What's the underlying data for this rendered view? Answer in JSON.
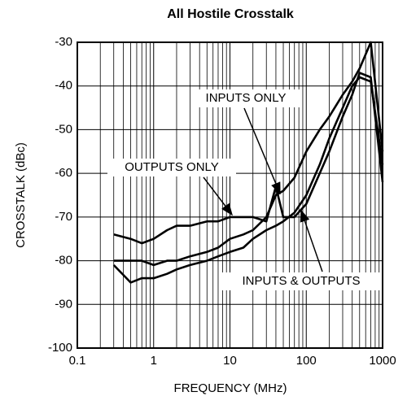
{
  "chart_data": {
    "type": "line",
    "title": "All Hostile Crosstalk",
    "x_label": "FREQUENCY (MHz)",
    "y_label": "CROSSTALK (dBc)",
    "log_x": true,
    "grid": true,
    "x": [
      0.3,
      0.5,
      0.7,
      1,
      1.5,
      2,
      3,
      5,
      7,
      10,
      15,
      20,
      30,
      40,
      50,
      70,
      100,
      150,
      200,
      300,
      400,
      500,
      700,
      1000
    ],
    "series": [
      {
        "name": "INPUTS ONLY",
        "color": "#000000",
        "values": [
          -80,
          -80,
          -80,
          -81,
          -80,
          -80,
          -79,
          -78,
          -77,
          -75,
          -74,
          -73,
          -70,
          -65,
          -64,
          -61,
          -55,
          -50,
          -47,
          -42,
          -39,
          -36,
          -30,
          -55
        ]
      },
      {
        "name": "INPUTS & OUTPUTS",
        "color": "#000000",
        "values": [
          -81,
          -85,
          -84,
          -84,
          -83,
          -82,
          -81,
          -80,
          -79,
          -78,
          -77,
          -75,
          -73,
          -72,
          -71,
          -69,
          -65,
          -58,
          -52,
          -45,
          -40,
          -38,
          -39,
          -58
        ]
      },
      {
        "name": "OUTPUTS ONLY",
        "color": "#000000",
        "values": [
          -74,
          -75,
          -76,
          -75,
          -73,
          -72,
          -72,
          -71,
          -71,
          -70,
          -70,
          -70,
          -71,
          -63,
          -70,
          -70,
          -67,
          -60,
          -55,
          -47,
          -42,
          -37,
          -38,
          -62
        ]
      }
    ],
    "xlim": [
      0.1,
      1000
    ],
    "xticks": [
      0.1,
      1,
      10,
      100,
      1000
    ],
    "x_minor_ticks": [
      0.2,
      0.3,
      0.4,
      0.5,
      0.6,
      0.7,
      0.8,
      0.9,
      2,
      3,
      4,
      5,
      6,
      7,
      8,
      9,
      20,
      30,
      40,
      50,
      60,
      70,
      80,
      90,
      200,
      300,
      400,
      500,
      600,
      700,
      800,
      900
    ],
    "ylim": [
      -100,
      -30
    ],
    "yticks": [
      -100,
      -90,
      -80,
      -70,
      -60,
      -50,
      -40,
      -30
    ]
  }
}
